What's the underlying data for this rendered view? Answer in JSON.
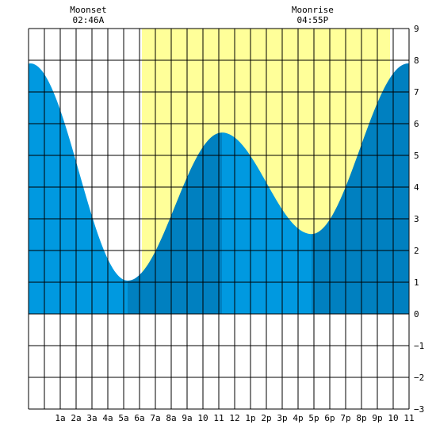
{
  "chart_data": {
    "type": "area",
    "title": "",
    "xlabel": "",
    "ylabel": "",
    "x_range_hours": [
      -1,
      23
    ],
    "ylim": [
      -3,
      9
    ],
    "y_ticks": [
      -3,
      -2,
      -1,
      0,
      1,
      2,
      3,
      4,
      5,
      6,
      7,
      8,
      9
    ],
    "x_tick_labels": [
      {
        "hour": 1,
        "label": "1a"
      },
      {
        "hour": 2,
        "label": "2a"
      },
      {
        "hour": 3,
        "label": "3a"
      },
      {
        "hour": 4,
        "label": "4a"
      },
      {
        "hour": 5,
        "label": "5a"
      },
      {
        "hour": 6,
        "label": "6a"
      },
      {
        "hour": 7,
        "label": "7a"
      },
      {
        "hour": 8,
        "label": "8a"
      },
      {
        "hour": 9,
        "label": "9a"
      },
      {
        "hour": 10,
        "label": "10"
      },
      {
        "hour": 11,
        "label": "11"
      },
      {
        "hour": 12,
        "label": "12"
      },
      {
        "hour": 13,
        "label": "1p"
      },
      {
        "hour": 14,
        "label": "2p"
      },
      {
        "hour": 15,
        "label": "3p"
      },
      {
        "hour": 16,
        "label": "4p"
      },
      {
        "hour": 17,
        "label": "5p"
      },
      {
        "hour": 18,
        "label": "6p"
      },
      {
        "hour": 19,
        "label": "7p"
      },
      {
        "hour": 20,
        "label": "8p"
      },
      {
        "hour": 21,
        "label": "9p"
      },
      {
        "hour": 22,
        "label": "10"
      },
      {
        "hour": 23,
        "label": "11"
      }
    ],
    "grid": true,
    "daylight": {
      "start_hour": 6.15,
      "end_hour": 21.8
    },
    "tide_extremes": [
      {
        "hour": 5.25,
        "height": 1.05,
        "kind": "low"
      },
      {
        "hour": 11.2,
        "height": 5.72,
        "kind": "high"
      },
      {
        "hour": 16.85,
        "height": 2.52,
        "kind": "low"
      },
      {
        "hour": 22.95,
        "height": 7.9,
        "kind": "high"
      }
    ],
    "tide_start": {
      "hour": -1,
      "height": 6.7
    },
    "tide_end": {
      "hour": 23,
      "height": 7.45
    },
    "colors": {
      "daylight": "#ffff99",
      "tide_light": "#0099e0",
      "tide_dark": "#0080c0",
      "grid": "#000000",
      "background": "#ffffff"
    },
    "annotations": [
      {
        "hour": 2.77,
        "title": "Moonset",
        "time": "02:46A"
      },
      {
        "hour": 16.92,
        "title": "Moonrise",
        "time": "04:55P"
      }
    ]
  }
}
